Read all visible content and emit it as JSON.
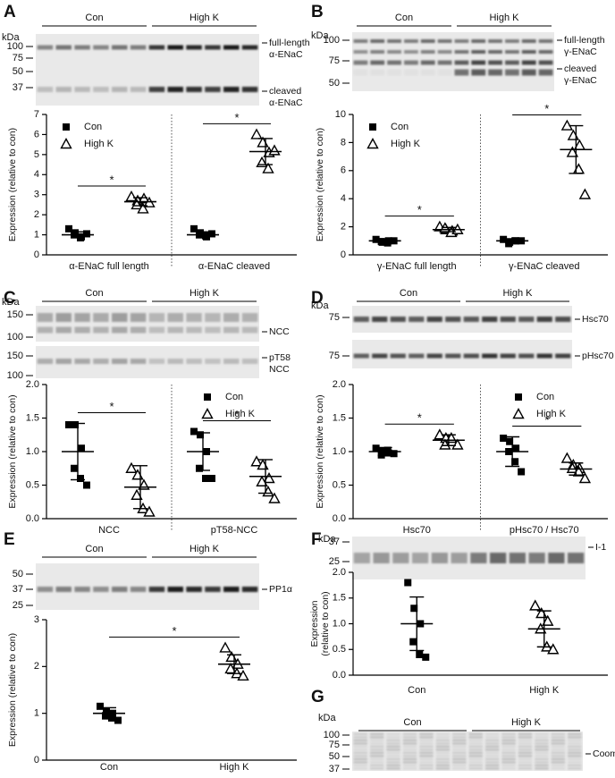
{
  "chart_data": [
    {
      "type": "scatter",
      "panel": "A",
      "lanes": [
        "Con",
        "High K"
      ],
      "blots": [
        {
          "unit": "kDa",
          "markers": [
            100,
            75,
            50,
            37
          ],
          "labels": [
            [
              "full-length",
              "α-ENaC"
            ],
            [
              "cleaved",
              "α-ENaC"
            ]
          ]
        }
      ],
      "y_label": [
        "Expression (relative to con)"
      ],
      "ylim": [
        0,
        7
      ],
      "yticks": [
        0,
        1,
        2,
        3,
        4,
        5,
        6,
        7
      ],
      "divider": true,
      "legend": {
        "position": "upper left",
        "entries": [
          {
            "name": "Con",
            "marker": "square"
          },
          {
            "name": "High K",
            "marker": "triangle"
          }
        ]
      },
      "categories": [
        {
          "label": "α-ENaC full length",
          "groups": [
            {
              "marker": "square",
              "color": "#000000",
              "values": [
                1.3,
                1.1,
                0.9,
                1.0,
                0.85,
                1.05
              ],
              "mean": 1.0,
              "sd": 0.15
            },
            {
              "marker": "triangle",
              "color": "#000000",
              "values": [
                2.9,
                2.7,
                2.8,
                2.5,
                2.3,
                2.6
              ],
              "mean": 2.65,
              "sd": 0.2,
              "significance": "*"
            }
          ]
        },
        {
          "label": "α-ENaC cleaved",
          "groups": [
            {
              "marker": "square",
              "color": "#000000",
              "values": [
                1.3,
                1.1,
                0.9,
                1.0,
                0.95,
                1.05
              ],
              "mean": 1.0,
              "sd": 0.15
            },
            {
              "marker": "triangle",
              "color": "#000000",
              "values": [
                6.0,
                5.6,
                5.1,
                4.6,
                4.3,
                5.2
              ],
              "mean": 5.15,
              "sd": 0.65,
              "significance": "*"
            }
          ]
        }
      ]
    },
    {
      "type": "scatter",
      "panel": "B",
      "lanes": [
        "Con",
        "High K"
      ],
      "blots": [
        {
          "unit": "kDa",
          "markers": [
            100,
            75,
            50
          ],
          "labels": [
            [
              "full-length",
              "γ-ENaC"
            ],
            [
              "cleaved",
              "γ-ENaC"
            ]
          ]
        }
      ],
      "y_label": [
        "Expression (relative to con)"
      ],
      "ylim": [
        0,
        10
      ],
      "yticks": [
        0,
        2,
        4,
        6,
        8,
        10
      ],
      "divider": true,
      "legend": {
        "position": "upper left",
        "entries": [
          {
            "name": "Con",
            "marker": "square"
          },
          {
            "name": "High K",
            "marker": "triangle"
          }
        ]
      },
      "categories": [
        {
          "label": "γ-ENaC full length",
          "groups": [
            {
              "marker": "square",
              "color": "#000000",
              "values": [
                1.1,
                0.9,
                1.0,
                0.95,
                0.85,
                1.0
              ],
              "mean": 1.0,
              "sd": 0.1
            },
            {
              "marker": "triangle",
              "color": "#000000",
              "values": [
                2.0,
                1.8,
                1.7,
                1.9,
                1.6,
                1.8
              ],
              "mean": 1.8,
              "sd": 0.15,
              "significance": "*"
            }
          ]
        },
        {
          "label": "γ-ENaC cleaved",
          "groups": [
            {
              "marker": "square",
              "color": "#000000",
              "values": [
                1.1,
                0.9,
                1.0,
                0.8,
                1.0,
                1.0
              ],
              "mean": 1.0,
              "sd": 0.15
            },
            {
              "marker": "triangle",
              "color": "#000000",
              "values": [
                9.2,
                8.5,
                7.8,
                7.3,
                6.1,
                4.3
              ],
              "mean": 7.5,
              "sd": 1.7,
              "significance": "*"
            }
          ]
        }
      ]
    },
    {
      "type": "scatter",
      "panel": "C",
      "lanes": [
        "Con",
        "High K"
      ],
      "blots": [
        {
          "unit": "kDa",
          "markers": [
            150,
            100
          ],
          "labels": [
            [
              "NCC"
            ]
          ]
        },
        {
          "markers": [
            150,
            100
          ],
          "labels": [
            [
              "pT58",
              "NCC"
            ]
          ]
        }
      ],
      "y_label": [
        "Expression (relative to con)"
      ],
      "ylim": [
        0,
        2
      ],
      "yticks": [
        {
          "value": 0,
          "label": "0.0"
        },
        0.5,
        {
          "value": 1,
          "label": "1.0"
        },
        1.5,
        {
          "value": 2,
          "label": "2.0"
        }
      ],
      "divider": true,
      "legend": {
        "position": "upper right",
        "entries": [
          {
            "name": "Con",
            "marker": "square"
          },
          {
            "name": "High K",
            "marker": "triangle"
          }
        ]
      },
      "categories": [
        {
          "label": "NCC",
          "groups": [
            {
              "marker": "square",
              "color": "#000000",
              "values": [
                1.4,
                1.4,
                1.05,
                0.75,
                0.6,
                0.5
              ],
              "mean": 1.0,
              "sd": 0.42
            },
            {
              "marker": "triangle",
              "color": "#000000",
              "values": [
                0.75,
                0.65,
                0.5,
                0.35,
                0.15,
                0.1
              ],
              "mean": 0.47,
              "sd": 0.32,
              "significance": "*"
            }
          ]
        },
        {
          "label": "pT58-NCC",
          "groups": [
            {
              "marker": "square",
              "color": "#000000",
              "values": [
                1.3,
                1.25,
                1.0,
                0.75,
                0.6,
                0.6
              ],
              "mean": 1.0,
              "sd": 0.28
            },
            {
              "marker": "triangle",
              "color": "#000000",
              "values": [
                0.85,
                0.8,
                0.6,
                0.55,
                0.4,
                0.3
              ],
              "mean": 0.63,
              "sd": 0.25,
              "significance": "*"
            }
          ]
        }
      ]
    },
    {
      "type": "scatter",
      "panel": "D",
      "lanes": [
        "Con",
        "High K"
      ],
      "blots": [
        {
          "unit": "kDa",
          "markers": [
            75
          ],
          "labels": [
            [
              "Hsc70"
            ]
          ]
        },
        {
          "markers": [
            75
          ],
          "labels": [
            [
              "pHsc70"
            ]
          ]
        }
      ],
      "y_label": [
        "Expression (relative to con)"
      ],
      "ylim": [
        0,
        2
      ],
      "yticks": [
        {
          "value": 0,
          "label": "0.0"
        },
        0.5,
        {
          "value": 1,
          "label": "1.0"
        },
        1.5,
        {
          "value": 2,
          "label": "2.0"
        }
      ],
      "divider": true,
      "legend": {
        "position": "upper right",
        "entries": [
          {
            "name": "Con",
            "marker": "square"
          },
          {
            "name": "High K",
            "marker": "triangle"
          }
        ]
      },
      "categories": [
        {
          "label": "Hsc70",
          "groups": [
            {
              "marker": "square",
              "color": "#000000",
              "values": [
                1.05,
                1.0,
                0.98,
                0.95,
                1.02,
                0.97
              ],
              "mean": 1.0,
              "sd": 0.06
            },
            {
              "marker": "triangle",
              "color": "#000000",
              "values": [
                1.25,
                1.2,
                1.15,
                1.1,
                1.2,
                1.1
              ],
              "mean": 1.17,
              "sd": 0.08,
              "significance": "*"
            }
          ]
        },
        {
          "label": "pHsc70 / Hsc70",
          "groups": [
            {
              "marker": "square",
              "color": "#000000",
              "values": [
                1.2,
                1.15,
                1.05,
                1.0,
                0.85,
                0.7
              ],
              "mean": 1.0,
              "sd": 0.22
            },
            {
              "marker": "triangle",
              "color": "#000000",
              "values": [
                0.9,
                0.8,
                0.75,
                0.75,
                0.7,
                0.6
              ],
              "mean": 0.74,
              "sd": 0.09,
              "significance": "*"
            }
          ]
        }
      ]
    },
    {
      "type": "scatter",
      "panel": "E",
      "lanes": [
        "Con",
        "High K"
      ],
      "blots": [
        {
          "markers": [
            50,
            37,
            25
          ],
          "labels": [
            [
              "PP1α"
            ]
          ]
        }
      ],
      "y_label": [
        "Expression (relative to con)"
      ],
      "ylim": [
        0,
        3
      ],
      "yticks": [
        0,
        1,
        2,
        3
      ],
      "divider": false,
      "categories": [
        {
          "label": "Con",
          "groups": [
            {
              "marker": "square",
              "color": "#000000",
              "values": [
                1.15,
                1.05,
                1.0,
                0.95,
                0.9,
                0.85
              ],
              "mean": 1.0,
              "sd": 0.12
            }
          ]
        },
        {
          "label": "High K",
          "groups": [
            {
              "marker": "triangle",
              "color": "#000000",
              "values": [
                2.4,
                2.2,
                2.05,
                1.95,
                1.85,
                1.8
              ],
              "mean": 2.05,
              "sd": 0.2,
              "significance": "*"
            }
          ]
        }
      ]
    },
    {
      "type": "scatter",
      "panel": "F",
      "lanes": [
        "Con",
        "High K"
      ],
      "blots": [
        {
          "unit": "kDa",
          "markers": [
            37,
            25
          ],
          "labels": [
            [
              "I-1"
            ]
          ]
        }
      ],
      "y_label": [
        "Expression",
        "(relative to con)"
      ],
      "ylim": [
        0,
        2
      ],
      "yticks": [
        {
          "value": 0,
          "label": "0.0"
        },
        0.5,
        {
          "value": 1,
          "label": "1.0"
        },
        1.5,
        {
          "value": 2,
          "label": "2.0"
        }
      ],
      "divider": false,
      "categories": [
        {
          "label": "Con",
          "groups": [
            {
              "marker": "square",
              "color": "#000000",
              "values": [
                1.8,
                1.3,
                1.0,
                0.65,
                0.4,
                0.35
              ],
              "mean": 1.0,
              "sd": 0.52
            }
          ]
        },
        {
          "label": "High K",
          "groups": [
            {
              "marker": "triangle",
              "color": "#000000",
              "values": [
                1.35,
                1.2,
                1.05,
                0.9,
                0.55,
                0.5
              ],
              "mean": 0.9,
              "sd": 0.35
            }
          ]
        }
      ]
    },
    {
      "type": "blot",
      "panel": "G",
      "lanes": [
        "Con",
        "High K"
      ],
      "blots": [
        {
          "unit": "kDa",
          "markers": [
            100,
            75,
            50,
            37
          ],
          "labels": [
            [
              "Coom"
            ]
          ]
        }
      ]
    }
  ]
}
